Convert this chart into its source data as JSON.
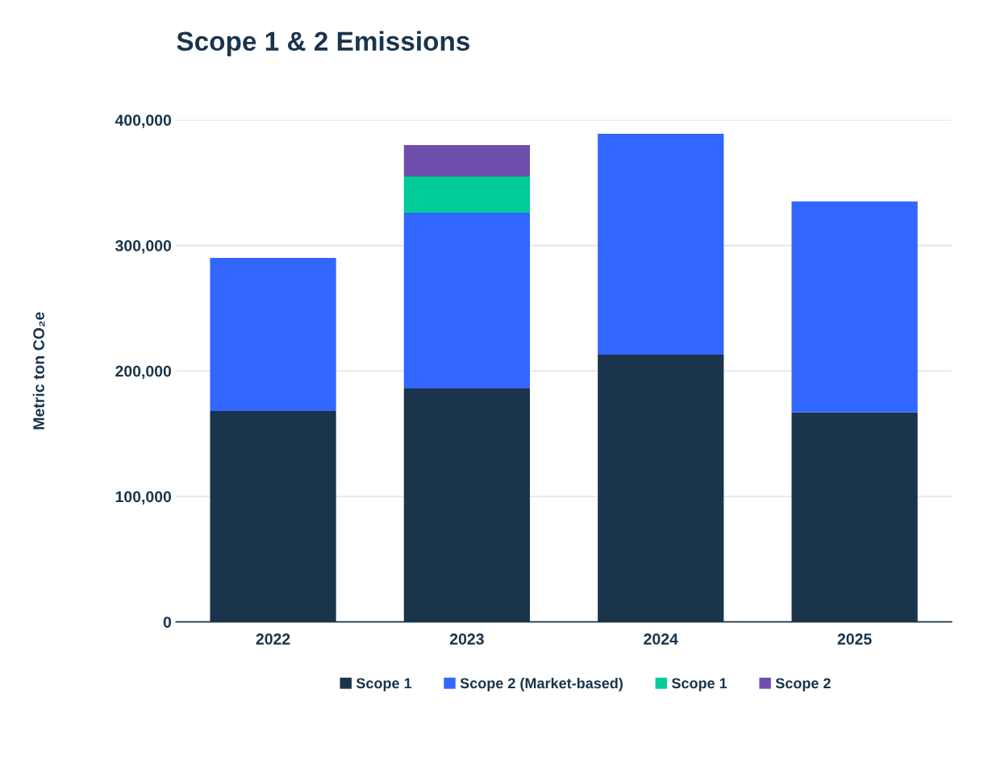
{
  "chart_data": {
    "type": "bar",
    "title": "Scope 1 & 2 Emissions",
    "ylabel": "Metric ton CO₂e",
    "categories": [
      "2022",
      "2023",
      "2024",
      "2025"
    ],
    "stacked": true,
    "series": [
      {
        "name": "Scope 1",
        "color": "#1a344b",
        "values": [
          168000,
          186000,
          213000,
          167000
        ]
      },
      {
        "name": "Scope 2 (Market-based)",
        "color": "#3366ff",
        "values": [
          122000,
          140000,
          176000,
          168000
        ]
      },
      {
        "name": "Scope 1",
        "color": "#00cc99",
        "values": [
          null,
          29000,
          null,
          null
        ]
      },
      {
        "name": "Scope 2",
        "color": "#6f4fad",
        "values": [
          null,
          25000,
          null,
          null
        ]
      }
    ],
    "ylim": [
      0,
      400000
    ],
    "yticks": [
      0,
      {
        "value": 100000,
        "label": "100,000"
      },
      {
        "value": 200000,
        "label": "200,000"
      },
      {
        "value": 300000,
        "label": "300,000"
      },
      {
        "value": 400000,
        "label": "400,000"
      }
    ],
    "grid": "y",
    "legend": "bottom"
  }
}
